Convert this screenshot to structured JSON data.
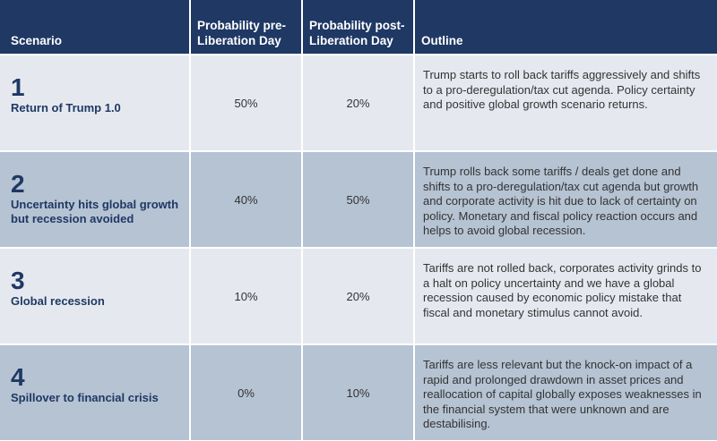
{
  "header": {
    "scenario": "Scenario",
    "prob_pre": "Probability pre-Liberation Day",
    "prob_post": "Probability post-Liberation Day",
    "outline": "Outline"
  },
  "rows": [
    {
      "number": "1",
      "name": "Return of Trump 1.0",
      "pre": "50%",
      "post": "20%",
      "outline": "Trump starts to roll back tariffs aggressively and shifts to a pro-deregulation/tax cut agenda. Policy certainty and positive global growth scenario returns."
    },
    {
      "number": "2",
      "name": "Uncertainty hits global growth but recession avoided",
      "pre": "40%",
      "post": "50%",
      "outline": "Trump rolls back some tariffs / deals get done and shifts to a pro-deregulation/tax cut agenda but growth and corporate activity is hit due to lack of certainty on policy. Monetary and fiscal policy reaction occurs and helps to avoid global recession."
    },
    {
      "number": "3",
      "name": "Global recession",
      "pre": "10%",
      "post": "20%",
      "outline": "Tariffs are not rolled back, corporates activity grinds to a halt on policy uncertainty and we have a global recession caused by economic policy mistake that fiscal and monetary stimulus cannot avoid."
    },
    {
      "number": "4",
      "name": "Spillover to financial crisis",
      "pre": "0%",
      "post": "10%",
      "outline": "Tariffs are less relevant but the knock-on impact of a rapid and prolonged drawdown in asset prices and reallocation of capital globally exposes weaknesses in the financial system that were unknown and are destabilising."
    }
  ]
}
